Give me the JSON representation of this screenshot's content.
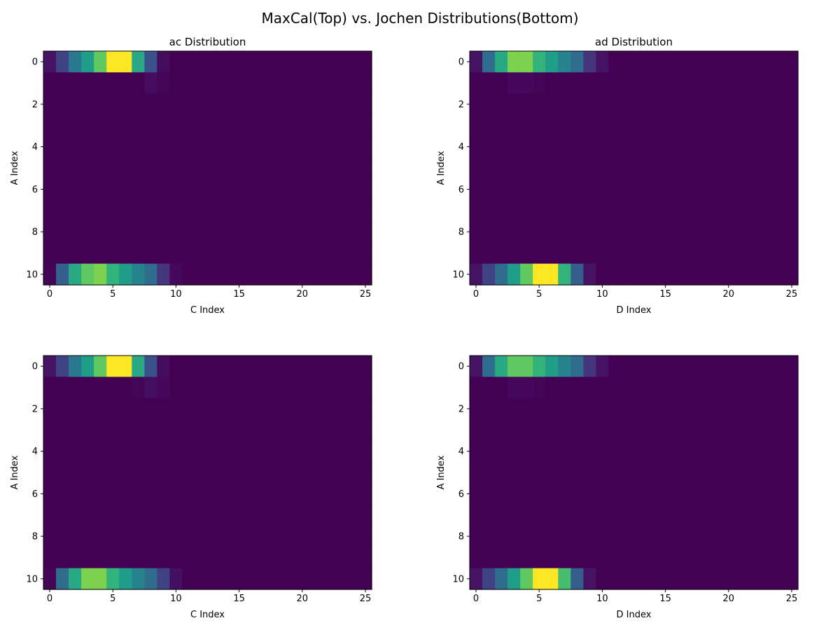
{
  "figure": {
    "suptitle": "MaxCal(Top) vs. Jochen Distributions(Bottom)"
  },
  "colormap": [
    "#440154",
    "#482878",
    "#3e4989",
    "#31688e",
    "#26828e",
    "#1f9e89",
    "#35b779",
    "#6ece58",
    "#b5de2b",
    "#fde725"
  ],
  "chart_data": [
    {
      "type": "heatmap",
      "title": "ac Distribution",
      "xlabel": "C Index",
      "ylabel": "A Index",
      "rows": 11,
      "cols": 26,
      "xticks": [
        0,
        5,
        10,
        15,
        20,
        25
      ],
      "yticks": [
        0,
        2,
        4,
        6,
        8,
        10
      ],
      "xlim": [
        -0.5,
        25.5
      ],
      "ylim": [
        10.5,
        -0.5
      ],
      "cells": {
        "0": [
          0.05,
          0.2,
          0.4,
          0.55,
          0.75,
          1.0,
          1.0,
          0.6,
          0.25,
          0.03
        ],
        "1": [
          0,
          0,
          0,
          0,
          0,
          0,
          0,
          0,
          0.03,
          0.01
        ],
        "10": [
          0.01,
          0.3,
          0.6,
          0.75,
          0.8,
          0.65,
          0.55,
          0.45,
          0.35,
          0.15,
          0.02
        ]
      }
    },
    {
      "type": "heatmap",
      "title": "ad Distribution",
      "xlabel": "D Index",
      "ylabel": "A Index",
      "rows": 11,
      "cols": 26,
      "xticks": [
        0,
        5,
        10,
        15,
        20,
        25
      ],
      "yticks": [
        0,
        2,
        4,
        6,
        8,
        10
      ],
      "xlim": [
        -0.5,
        25.5
      ],
      "ylim": [
        10.5,
        -0.5
      ],
      "cells": {
        "0": [
          0.05,
          0.35,
          0.6,
          0.8,
          0.8,
          0.65,
          0.55,
          0.45,
          0.35,
          0.15,
          0.05
        ],
        "1": [
          0,
          0,
          0,
          0.02,
          0.02,
          0.01,
          0,
          0,
          0,
          0,
          0
        ],
        "10": [
          0.05,
          0.2,
          0.35,
          0.55,
          0.75,
          1.0,
          1.0,
          0.65,
          0.3,
          0.05
        ]
      }
    },
    {
      "type": "heatmap",
      "title": "",
      "xlabel": "C Index",
      "ylabel": "A Index",
      "rows": 11,
      "cols": 26,
      "xticks": [
        0,
        5,
        10,
        15,
        20,
        25
      ],
      "yticks": [
        0,
        2,
        4,
        6,
        8,
        10
      ],
      "xlim": [
        -0.5,
        25.5
      ],
      "ylim": [
        10.5,
        -0.5
      ],
      "cells": {
        "0": [
          0.05,
          0.2,
          0.4,
          0.55,
          0.75,
          1.0,
          1.0,
          0.6,
          0.25,
          0.03
        ],
        "1": [
          0,
          0,
          0,
          0,
          0,
          0,
          0,
          0.01,
          0.04,
          0.02
        ],
        "10": [
          0.01,
          0.35,
          0.6,
          0.8,
          0.8,
          0.65,
          0.55,
          0.45,
          0.35,
          0.2,
          0.04
        ]
      }
    },
    {
      "type": "heatmap",
      "title": "",
      "xlabel": "D Index",
      "ylabel": "A Index",
      "rows": 11,
      "cols": 26,
      "xticks": [
        0,
        5,
        10,
        15,
        20,
        25
      ],
      "yticks": [
        0,
        2,
        4,
        6,
        8,
        10
      ],
      "xlim": [
        -0.5,
        25.5
      ],
      "ylim": [
        10.5,
        -0.5
      ],
      "cells": {
        "0": [
          0.05,
          0.35,
          0.6,
          0.75,
          0.75,
          0.65,
          0.55,
          0.45,
          0.35,
          0.15,
          0.05
        ],
        "1": [
          0,
          0,
          0,
          0.02,
          0.02,
          0.01,
          0,
          0,
          0,
          0,
          0
        ],
        "10": [
          0.05,
          0.2,
          0.35,
          0.55,
          0.75,
          1.0,
          1.0,
          0.7,
          0.3,
          0.05
        ]
      }
    }
  ]
}
